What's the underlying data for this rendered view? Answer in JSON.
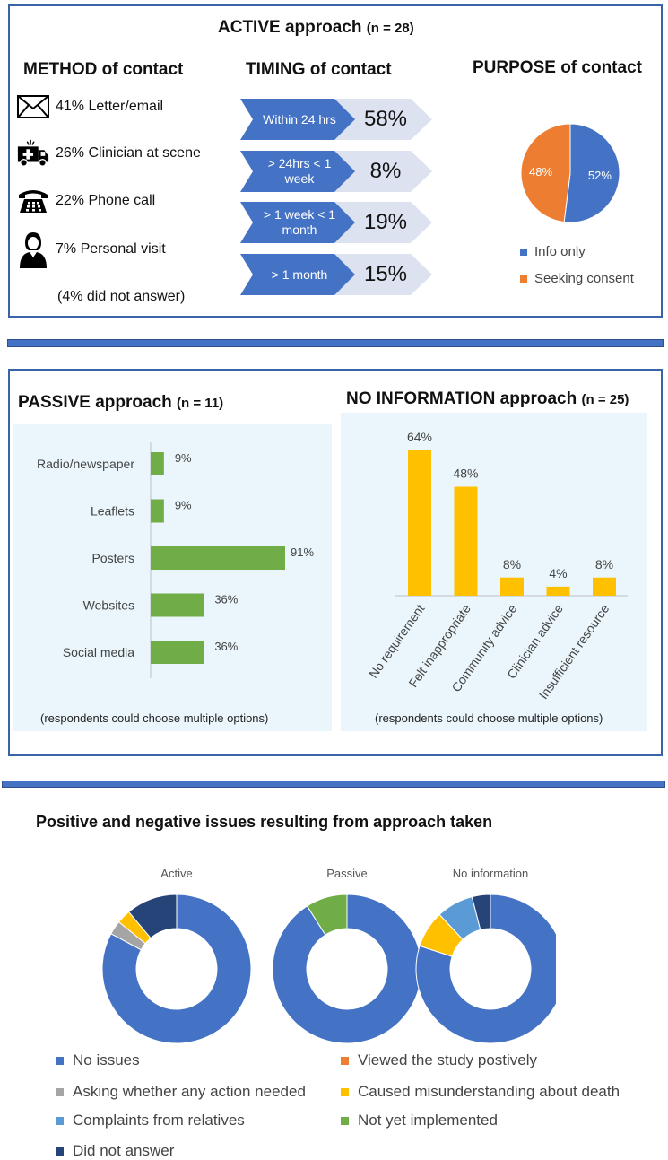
{
  "active": {
    "title": "ACTIVE approach",
    "n": "(n = 28)",
    "method": {
      "title": "METHOD of contact",
      "items": [
        {
          "text": "41% Letter/email",
          "icon": "envelope-icon"
        },
        {
          "text": "26% Clinician at scene",
          "icon": "ambulance-icon"
        },
        {
          "text": "22% Phone call",
          "icon": "telephone-icon"
        },
        {
          "text": "7% Personal visit",
          "icon": "person-icon"
        }
      ],
      "note": "(4% did not answer)"
    },
    "timing": {
      "title": "TIMING of contact",
      "rows": [
        {
          "label": "Within 24 hrs",
          "value": "58%"
        },
        {
          "label": "> 24hrs < 1 week",
          "value": "8%"
        },
        {
          "label": "> 1 week < 1 month",
          "value": "19%"
        },
        {
          "label": "> 1 month",
          "value": "15%"
        }
      ]
    },
    "purpose": {
      "title": "PURPOSE of contact",
      "legend": [
        "Info only",
        "Seeking consent"
      ]
    }
  },
  "passive": {
    "title": "PASSIVE approach",
    "n": "(n = 11)",
    "note": "(respondents could choose multiple options)"
  },
  "noinfo": {
    "title": "NO INFORMATION approach",
    "n": "(n = 25)",
    "note": "(respondents could choose multiple options)"
  },
  "issues": {
    "title": "Positive and negative issues resulting from approach taken",
    "legend": [
      "No issues",
      "Viewed the study postively",
      "Asking whether any action needed",
      "Caused misunderstanding about death",
      "Complaints from relatives",
      "Not yet implemented",
      "Did not answer"
    ]
  },
  "colors": {
    "blue": "#4472c4",
    "orange": "#ed7d31",
    "gray": "#a5a5a5",
    "yellow": "#ffc000",
    "lightblue": "#5b9bd5",
    "green": "#70ad47",
    "navy": "#264478",
    "arrow": "#4472c4",
    "arrowLight": "#dce2f0"
  },
  "chart_data": [
    {
      "type": "pie",
      "title": "PURPOSE of contact",
      "categories": [
        "Info only",
        "Seeking consent"
      ],
      "values": [
        52,
        48
      ],
      "labels": [
        "52%",
        "48%"
      ]
    },
    {
      "type": "bar",
      "orientation": "horizontal",
      "title": "PASSIVE approach",
      "categories": [
        "Radio/newspaper",
        "Leaflets",
        "Posters",
        "Websites",
        "Social media"
      ],
      "values": [
        9,
        9,
        91,
        36,
        36
      ],
      "labels": [
        "9%",
        "9%",
        "91%",
        "36%",
        "36%"
      ],
      "xlim": [
        0,
        100
      ]
    },
    {
      "type": "bar",
      "title": "NO INFORMATION approach",
      "categories": [
        "No requirement",
        "Felt inappropriate",
        "Community advice",
        "Clinician advice",
        "Insufficient resource"
      ],
      "values": [
        64,
        48,
        8,
        4,
        8
      ],
      "labels": [
        "64%",
        "48%",
        "8%",
        "4%",
        "8%"
      ],
      "ylim": [
        0,
        70
      ]
    },
    {
      "type": "pie",
      "subtype": "donut",
      "title": "Positive and negative issues resulting from approach taken",
      "series": [
        {
          "name": "Active",
          "values": [
            82,
            0,
            3,
            3,
            0,
            0,
            11
          ]
        },
        {
          "name": "Passive",
          "values": [
            91,
            0,
            0,
            0,
            0,
            9,
            0
          ]
        },
        {
          "name": "No information",
          "values": [
            80,
            0,
            0,
            8,
            8,
            0,
            4
          ]
        }
      ],
      "categories": [
        "No issues",
        "Viewed the study postively",
        "Asking whether any action needed",
        "Caused misunderstanding about death",
        "Complaints from relatives",
        "Not yet implemented",
        "Did not answer"
      ]
    }
  ]
}
